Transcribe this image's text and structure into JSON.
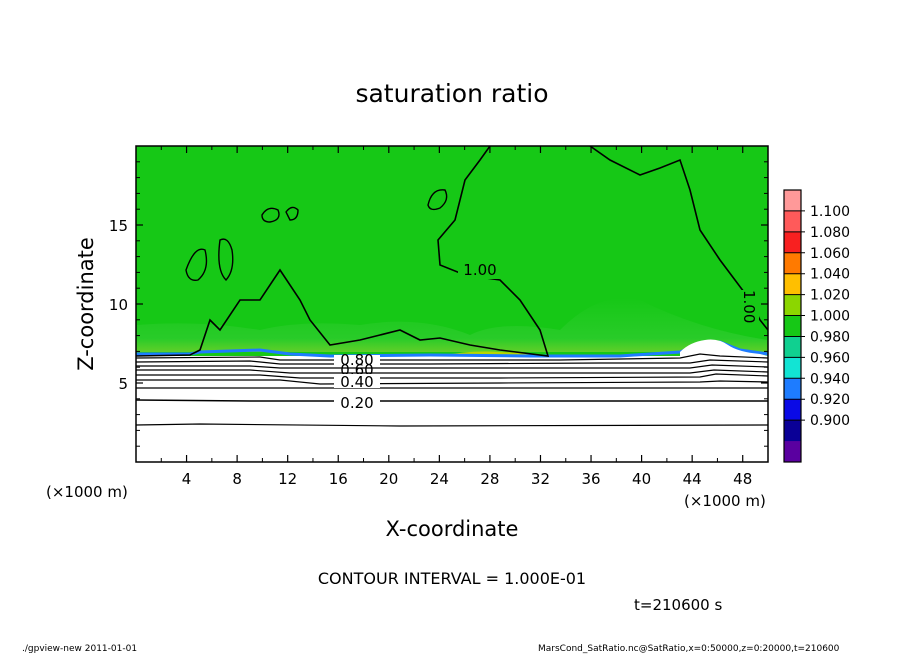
{
  "chart_data": {
    "type": "heatmap",
    "title": "saturation ratio",
    "xlabel": "X-coordinate",
    "ylabel": "Z-coordinate",
    "x_unit_left": "(×1000 m)",
    "x_unit_right": "(×1000 m)",
    "xlim": [
      0,
      50
    ],
    "ylim": [
      0,
      20
    ],
    "x_ticks": [
      4,
      8,
      12,
      16,
      20,
      24,
      28,
      32,
      36,
      40,
      44,
      48
    ],
    "y_ticks": [
      5,
      10,
      15
    ],
    "colorbar": {
      "levels": [
        "1.100",
        "1.080",
        "1.060",
        "1.040",
        "1.020",
        "1.000",
        "0.980",
        "0.960",
        "0.940",
        "0.920",
        "0.900"
      ],
      "colors": [
        "#ff9999",
        "#ff5a5a",
        "#f82020",
        "#ff7a00",
        "#ffbf00",
        "#8cd600",
        "#16c816",
        "#10d090",
        "#12e4d4",
        "#1e7cff",
        "#0a0ae6",
        "#0a0096",
        "#5a00a0"
      ]
    },
    "contour_labels": [
      {
        "text": "1.00",
        "x": 26,
        "z": 12.1
      },
      {
        "text": "1.00",
        "x": 47,
        "z": 10.0
      },
      {
        "text": "0.80",
        "x": 17.5,
        "z": 6.7
      },
      {
        "text": "0.60",
        "x": 17.5,
        "z": 6.2
      },
      {
        "text": "0.40",
        "x": 17.5,
        "z": 5.2
      },
      {
        "text": "0.20",
        "x": 17.5,
        "z": 3.8
      }
    ],
    "contour_interval": "CONTOUR INTERVAL = 1.000E-01",
    "time_label": "t=210600 s"
  },
  "footer": {
    "left": "./gpview-new   2011-01-01",
    "right": "MarsCond_SatRatio.nc@SatRatio,x=0:50000,z=0:20000,t=210600"
  }
}
